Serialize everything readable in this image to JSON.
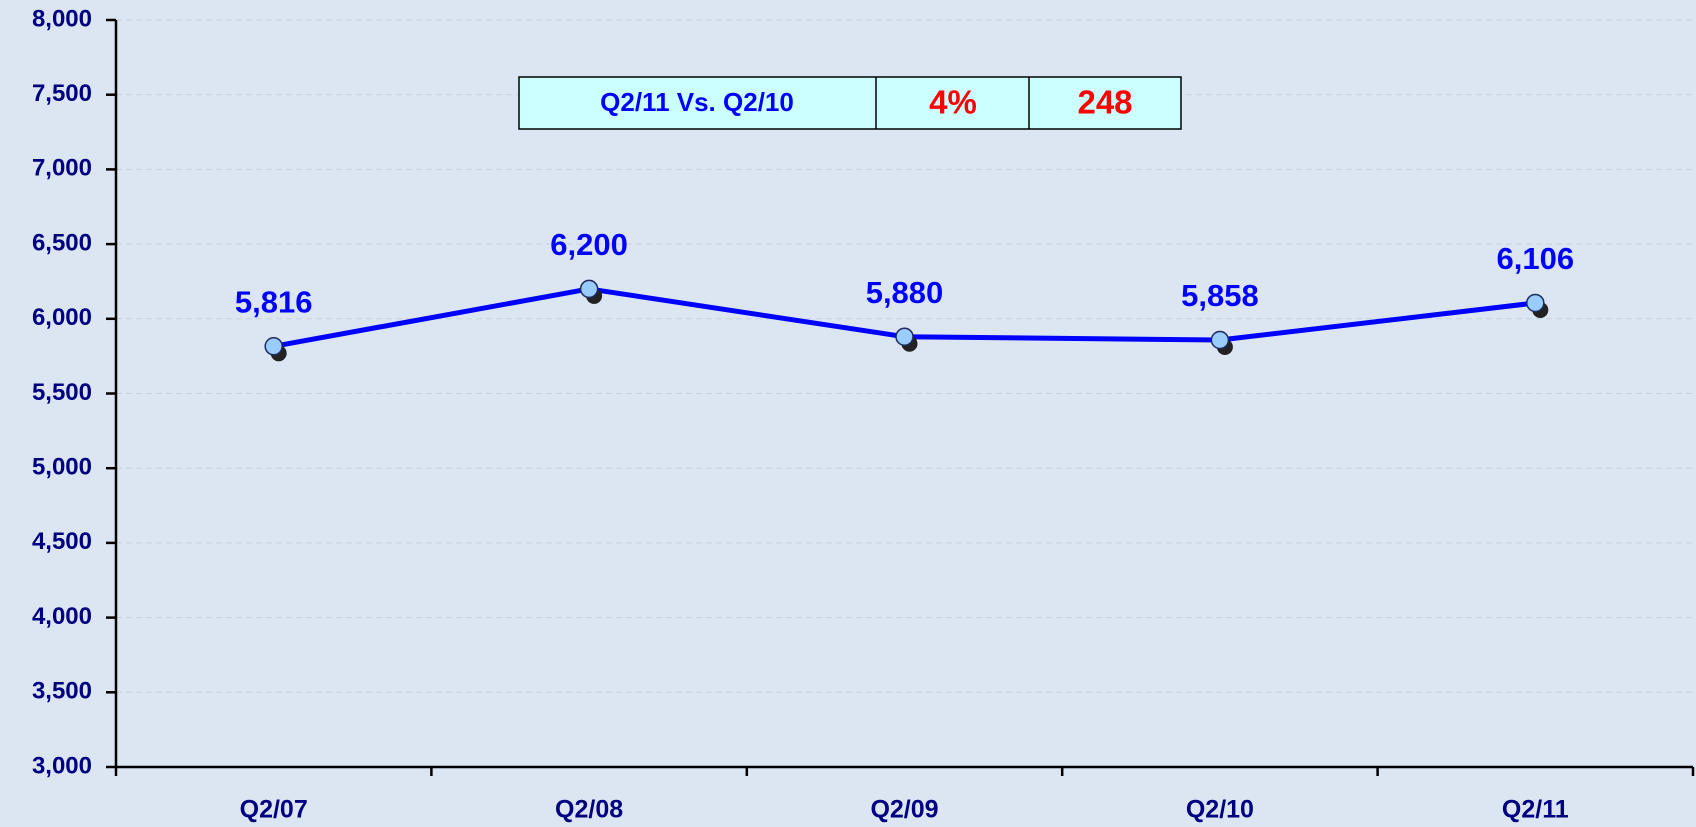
{
  "chart_data": {
    "type": "line",
    "categories": [
      "Q2/07",
      "Q2/08",
      "Q2/09",
      "Q2/10",
      "Q2/11"
    ],
    "values": [
      5816,
      6200,
      5880,
      5858,
      6106
    ],
    "value_labels": [
      "5,816",
      "6,200",
      "5,880",
      "5,858",
      "6,106"
    ],
    "color": "#0000ff",
    "marker_color": "#99ccff",
    "ylim": [
      3000,
      8000
    ],
    "yticks": [
      {
        "value": 3000,
        "label": "3,000"
      },
      {
        "value": 3500,
        "label": "3,500"
      },
      {
        "value": 4000,
        "label": "4,000"
      },
      {
        "value": 4500,
        "label": "4,500"
      },
      {
        "value": 5000,
        "label": "5,000"
      },
      {
        "value": 5500,
        "label": "5,500"
      },
      {
        "value": 6000,
        "label": "6,000"
      },
      {
        "value": 6500,
        "label": "6,500"
      },
      {
        "value": 7000,
        "label": "7,000"
      },
      {
        "value": 7500,
        "label": "7,500"
      },
      {
        "value": 8000,
        "label": "8,000"
      }
    ],
    "grid": true,
    "annotation": {
      "label": "Q2/11 Vs. Q2/10",
      "percent": "4%",
      "change": "248"
    }
  }
}
